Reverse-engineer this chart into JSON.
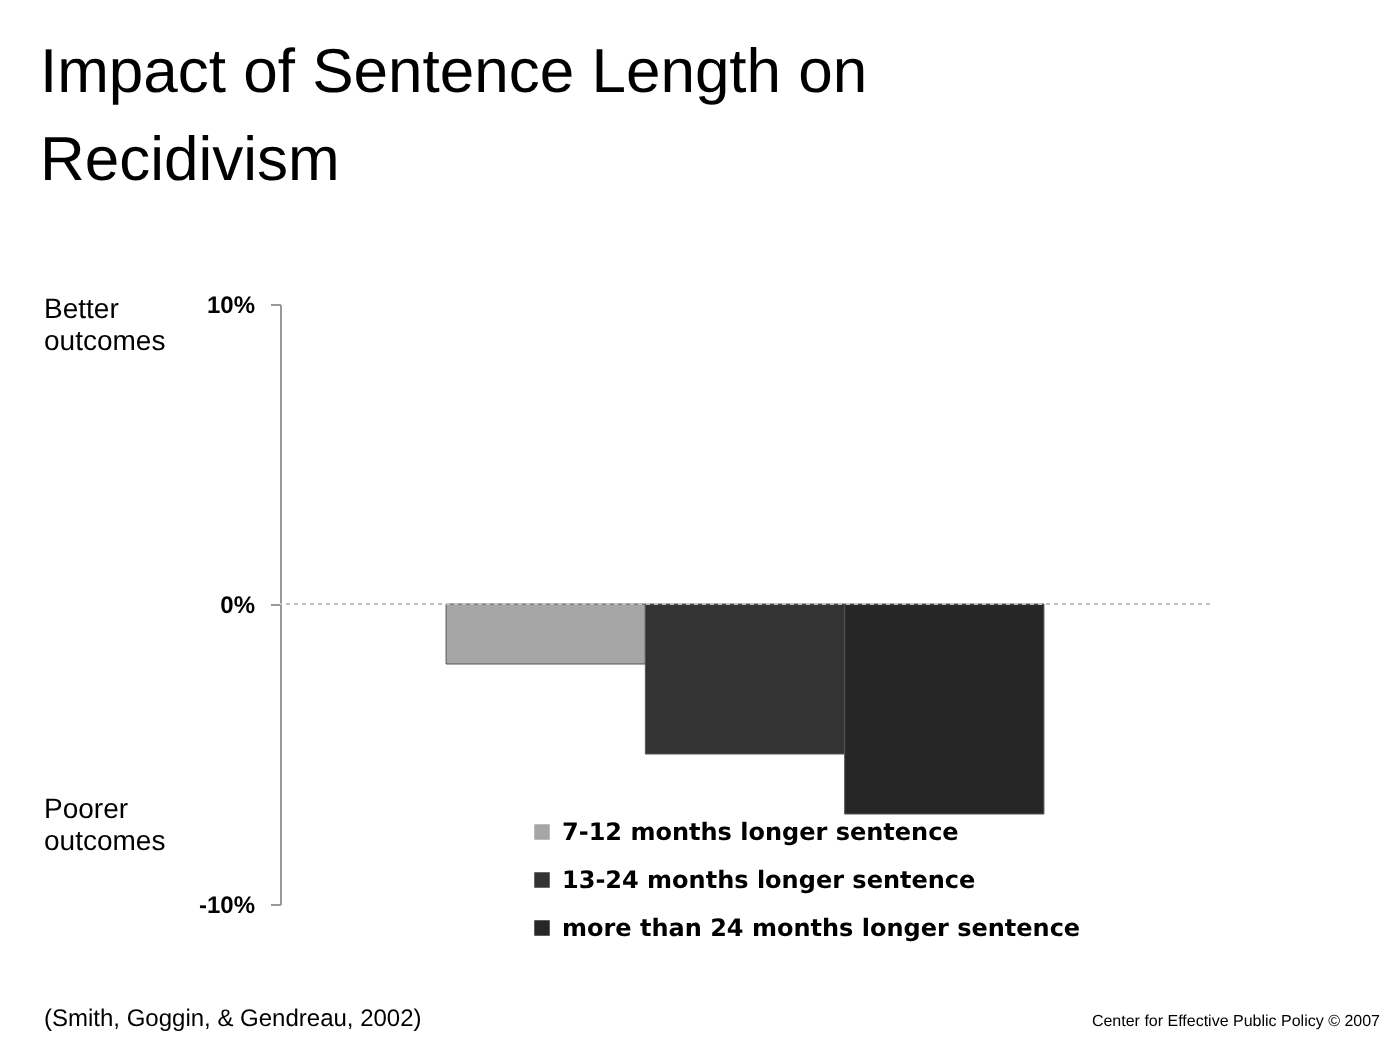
{
  "chart_data": {
    "type": "bar",
    "title": "Impact of Sentence Length on Recidivism",
    "categories": [
      null
    ],
    "series": [
      {
        "name": "7-12 months longer sentence",
        "color": "#a6a6a6",
        "values": [
          -2
        ]
      },
      {
        "name": "13-24 months longer sentence",
        "color": "#333333",
        "values": [
          -5
        ]
      },
      {
        "name": "more than 24 months longer sentence",
        "color": "#262626",
        "values": [
          -7
        ]
      }
    ],
    "ylim": [
      -10,
      10
    ],
    "yticks": [
      {
        "value": -10,
        "label": "-10%"
      },
      {
        "value": 0,
        "label": "0%"
      },
      {
        "value": 10,
        "label": "10%"
      }
    ],
    "ref_lines": [
      {
        "axis": "y",
        "value": 0,
        "color": "#c0c0c0",
        "line_style": "dotted"
      }
    ],
    "legend": "bottom",
    "annotations": [
      "Better outcomes",
      "Poorer outcomes",
      "(Smith, Goggin, & Gendreau, 2002)",
      "Center for Effective Public Policy © 2007"
    ]
  }
}
